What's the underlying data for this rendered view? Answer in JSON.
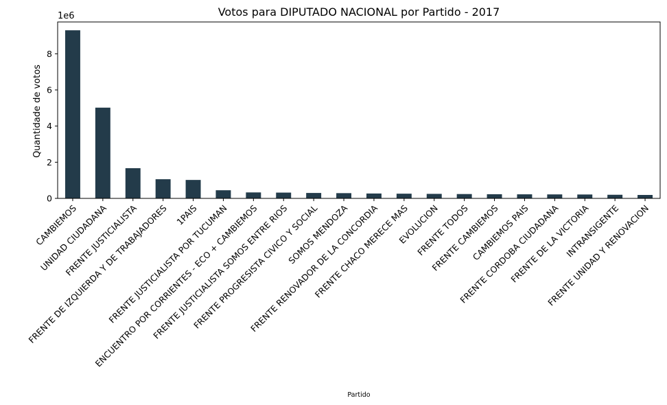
{
  "chart_data": {
    "type": "bar",
    "title": "Votos para DIPUTADO NACIONAL por Partido - 2017",
    "xlabel": "Partido",
    "ylabel": "Quantidade de votos",
    "y_offset_text": "1e6",
    "y_scale_factor": 1000000,
    "ylim": [
      0,
      9760000
    ],
    "yticks": [
      0,
      2000000,
      4000000,
      6000000,
      8000000
    ],
    "ytick_labels": [
      "0",
      "2",
      "4",
      "6",
      "8"
    ],
    "grid": false,
    "bar_color": "#233b4a",
    "categories": [
      "CAMBIEMOS",
      "UNIDAD CIUDADANA",
      "FRENTE JUSTICIALISTA",
      "FRENTE DE IZQUIERDA Y DE TRABAJADORES",
      "1PAIS",
      "FRENTE JUSTICIALISTA POR TUCUMAN",
      "ENCUENTRO POR CORRIENTES - ECO + CAMBIEMOS",
      "FRENTE JUSTICIALISTA SOMOS ENTRE RIOS",
      "FRENTE PROGRESISTA CIVICO Y SOCIAL",
      "SOMOS MENDOZA",
      "FRENTE RENOVADOR DE LA CONCORDIA",
      "FRENTE CHACO MERECE MAS",
      "EVOLUCION",
      "FRENTE TODOS",
      "FRENTE CAMBIEMOS",
      "CAMBIEMOS PAIS",
      "FRENTE CORDOBA CIUDADANA",
      "FRENTE DE LA VICTORIA",
      "INTRANSIGENTE",
      "FRENTE UNIDAD Y RENOVACION"
    ],
    "values": [
      9300000,
      5020000,
      1670000,
      1060000,
      1020000,
      450000,
      330000,
      320000,
      300000,
      290000,
      270000,
      260000,
      250000,
      240000,
      230000,
      225000,
      220000,
      215000,
      200000,
      190000
    ]
  }
}
